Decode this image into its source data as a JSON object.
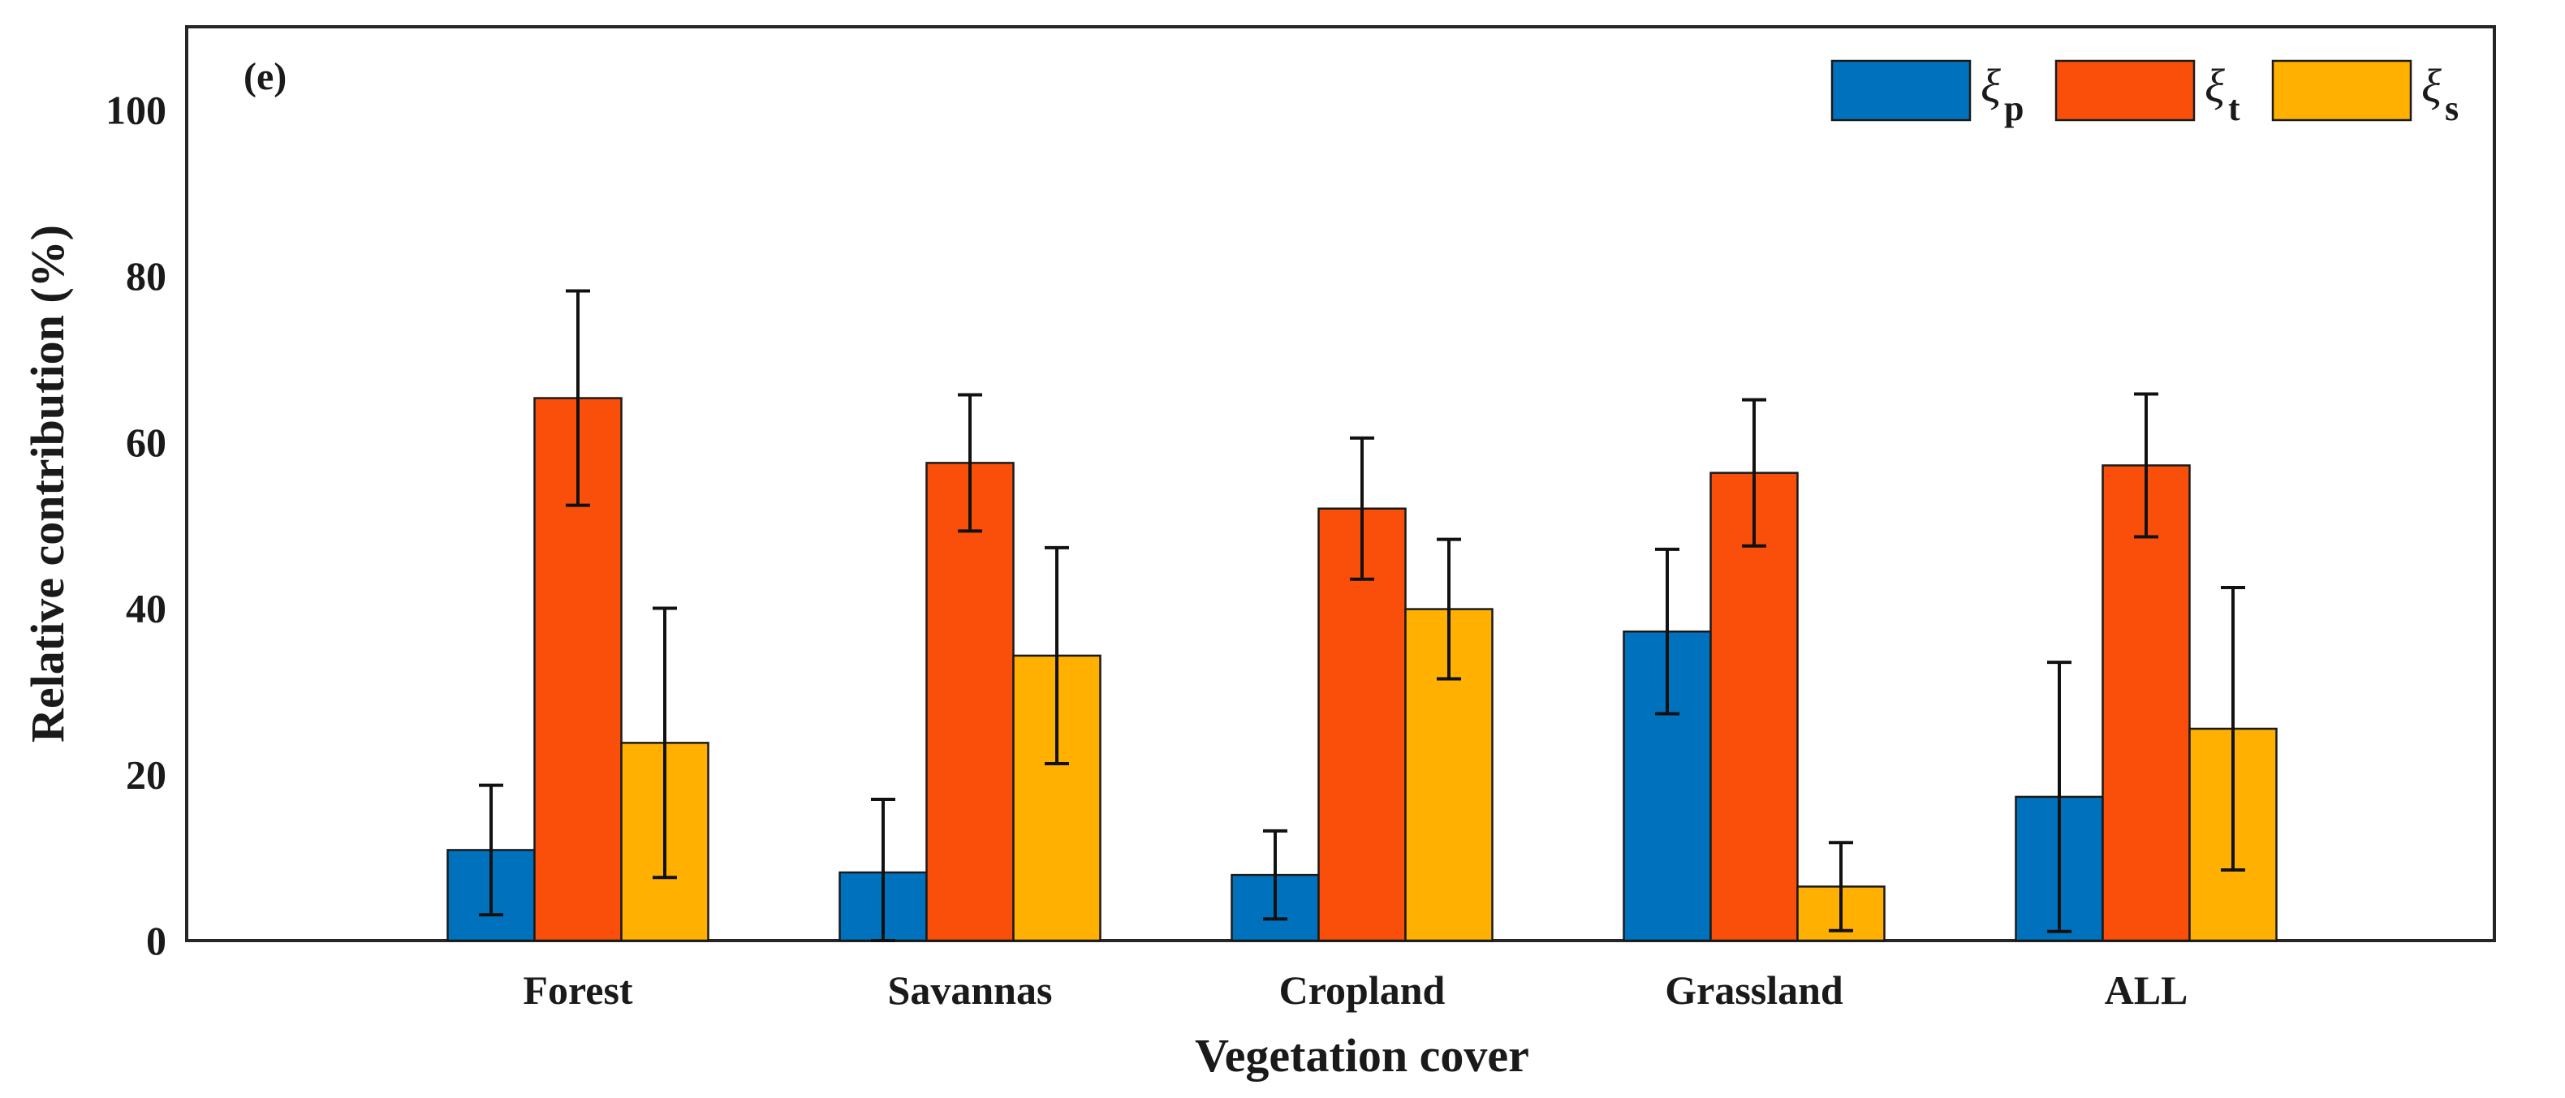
{
  "chart_data": {
    "type": "bar",
    "panel_label": "(e)",
    "xlabel": "Vegetation cover",
    "ylabel": "Relative contribution (%)",
    "categories": [
      "Forest",
      "Savannas",
      "Cropland",
      "Grassland",
      "ALL"
    ],
    "ylim": [
      0,
      110
    ],
    "yticks": [
      0,
      20,
      40,
      60,
      80,
      100
    ],
    "grid": false,
    "legend_position": "top-right",
    "series": [
      {
        "name": "ξp",
        "symbol": "ξ",
        "subscript": "p",
        "color": "#0072BD",
        "values": [
          10.9,
          8.2,
          7.9,
          37.2,
          17.3
        ],
        "errors": [
          7.8,
          8.8,
          5.3,
          9.9,
          16.2
        ]
      },
      {
        "name": "ξt",
        "symbol": "ξ",
        "subscript": "t",
        "color": "#F94F0B",
        "values": [
          65.3,
          57.5,
          52.0,
          56.3,
          57.2
        ],
        "errors": [
          12.9,
          8.2,
          8.5,
          8.8,
          8.6
        ]
      },
      {
        "name": "ξs",
        "symbol": "ξ",
        "subscript": "s",
        "color": "#FFB000",
        "values": [
          23.8,
          34.3,
          39.9,
          6.5,
          25.5
        ],
        "errors": [
          16.2,
          13.0,
          8.4,
          5.3,
          17.0
        ]
      }
    ]
  }
}
